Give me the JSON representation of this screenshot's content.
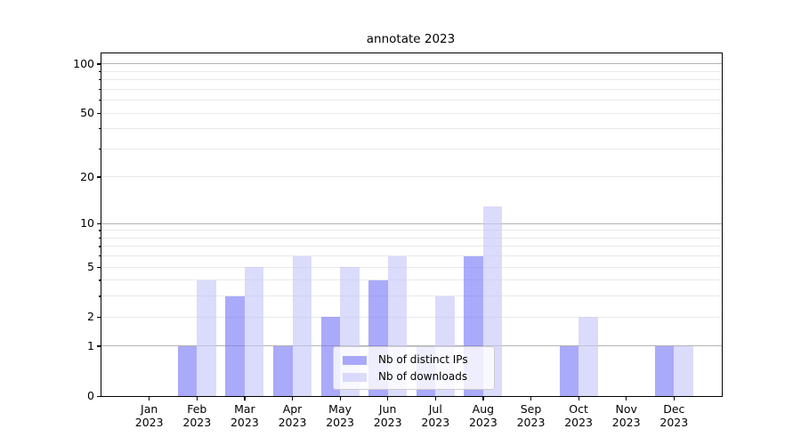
{
  "chart_data": {
    "type": "bar",
    "title": "annotate 2023",
    "scale": "log1p",
    "grid": "both",
    "legend_position": "lower center",
    "categories": [
      "Jan",
      "Feb",
      "Mar",
      "Apr",
      "May",
      "Jun",
      "Jul",
      "Aug",
      "Sep",
      "Oct",
      "Nov",
      "Dec"
    ],
    "x_tick_year": "2023",
    "series": [
      {
        "name": "Nb of distinct IPs",
        "color": "rgba(124,124,248,0.65)",
        "values": [
          0,
          1,
          3,
          1,
          2,
          4,
          1,
          6,
          0,
          1,
          0,
          1
        ]
      },
      {
        "name": "Nb of downloads",
        "color": "rgba(200,200,250,0.65)",
        "values": [
          0,
          4,
          5,
          6,
          5,
          6,
          3,
          13,
          0,
          2,
          0,
          1
        ]
      }
    ],
    "ylim": [
      0,
      116
    ],
    "y_ticks_labeled": [
      0,
      1,
      2,
      5,
      10,
      20,
      50,
      100
    ],
    "y_ticks_minor": [
      3,
      4,
      6,
      7,
      8,
      9,
      30,
      40,
      60,
      70,
      80,
      90
    ],
    "grid_major": [
      1,
      10,
      100
    ],
    "grid_minor": [
      2,
      3,
      4,
      5,
      6,
      7,
      8,
      9,
      20,
      30,
      40,
      50,
      60,
      70,
      80,
      90
    ],
    "colors": {
      "grid_major": "#b3b3b3",
      "grid_minor": "#e9e9e9",
      "spine": "#000000",
      "background": "#ffffff",
      "legend_border": "#cccccc"
    }
  }
}
